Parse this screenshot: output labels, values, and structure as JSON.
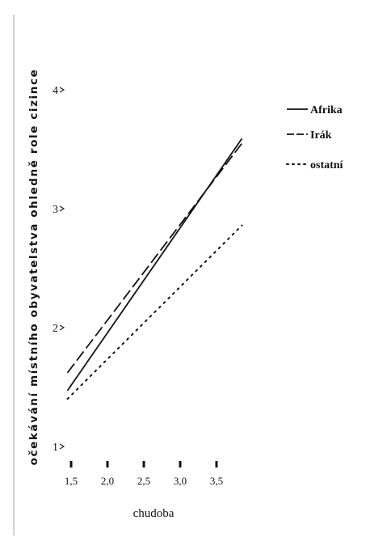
{
  "chart_data": {
    "type": "line",
    "title": "",
    "xlabel": "chudoba",
    "ylabel": "očekávání místního obyvatelstva ohledně role cizince",
    "x_ticks": [
      "1,5",
      "2,0",
      "2,5",
      "3,0",
      "3,5"
    ],
    "y_ticks": [
      "1",
      "2",
      "3",
      "4"
    ],
    "xlim": [
      1.4,
      3.9
    ],
    "ylim": [
      1.0,
      4.0
    ],
    "legend_position": "right",
    "grid": false,
    "series": [
      {
        "name": "Afrika",
        "style": "solid",
        "x": [
          1.45,
          3.85
        ],
        "y": [
          1.47,
          3.59
        ]
      },
      {
        "name": "Irák",
        "style": "dashed",
        "x": [
          1.45,
          3.85
        ],
        "y": [
          1.62,
          3.55
        ]
      },
      {
        "name": "ostatní",
        "style": "dotted",
        "x": [
          1.45,
          3.85
        ],
        "y": [
          1.4,
          2.86
        ]
      }
    ]
  }
}
